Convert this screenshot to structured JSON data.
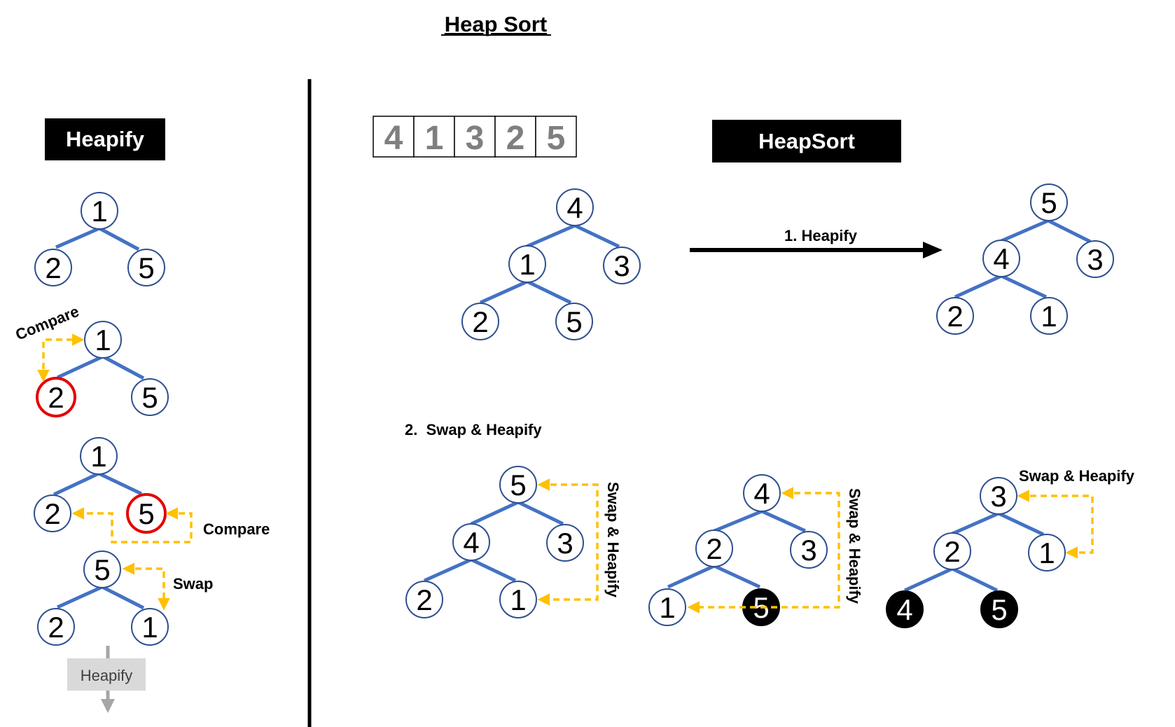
{
  "title": "Heap Sort",
  "left_panel": {
    "header": "Heapify",
    "tree1": {
      "root": "1",
      "left": "2",
      "right": "5"
    },
    "tree2": {
      "root": "1",
      "left": "2",
      "right": "5",
      "annotation": "Compare"
    },
    "tree3": {
      "root": "1",
      "left": "2",
      "right": "5",
      "annotation": "Compare"
    },
    "tree4": {
      "root": "5",
      "left": "2",
      "right": "1",
      "annotation": "Swap"
    },
    "next_step": "Heapify"
  },
  "right_panel": {
    "array": [
      "4",
      "1",
      "3",
      "2",
      "5"
    ],
    "header": "HeapSort",
    "initial_tree": {
      "root": "4",
      "left": "1",
      "right": "3",
      "left_left": "2",
      "left_right": "5"
    },
    "step1_label": "1. Heapify",
    "heapified_tree": {
      "root": "5",
      "left": "4",
      "right": "3",
      "left_left": "2",
      "left_right": "1"
    },
    "step2_label": "2.  Swap & Heapify",
    "swap_tree1": {
      "root": "5",
      "left": "4",
      "right": "3",
      "left_left": "2",
      "left_right": "1",
      "annotation": "Swap & Heapify"
    },
    "swap_tree2": {
      "root": "4",
      "left": "2",
      "right": "3",
      "left_left": "1",
      "left_right": "5",
      "annotation": "Swap & Heapify"
    },
    "swap_tree3": {
      "root": "3",
      "left": "2",
      "right": "1",
      "left_left": "4",
      "left_right": "5",
      "annotation": "Swap & Heapify"
    }
  },
  "colors": {
    "edge": "#4472c4",
    "node_stroke": "#2f4f8f",
    "highlight": "#e60000",
    "arrow": "#ffc000",
    "sorted_fill": "#000000",
    "array_text": "#7f7f7f",
    "header_bg": "#000000",
    "header_text": "#ffffff",
    "next_box": "#d9d9d9",
    "next_arrow": "#a6a6a6"
  }
}
